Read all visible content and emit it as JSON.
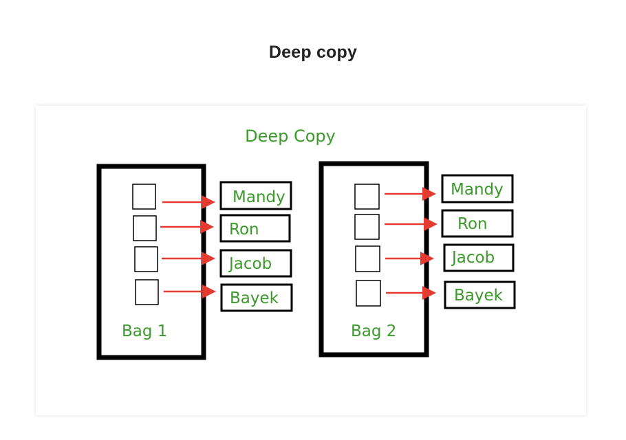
{
  "page": {
    "title": "Deep copy"
  },
  "diagram": {
    "caption": "Deep Copy",
    "colors": {
      "label_green": "#3a9a2a",
      "arrow_red": "#e53a2f",
      "border_black": "#000000"
    },
    "bags": [
      {
        "label": "Bag 1",
        "items": [
          "Mandy",
          "Ron",
          "Jacob",
          "Bayek"
        ]
      },
      {
        "label": "Bag 2",
        "items": [
          "Mandy",
          "Ron",
          "Jacob",
          "Bayek"
        ]
      }
    ]
  }
}
